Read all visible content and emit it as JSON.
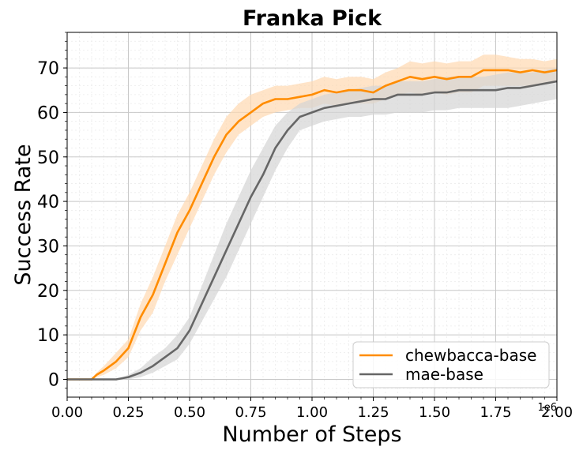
{
  "chart_data": {
    "type": "line",
    "title": "Franka Pick",
    "xlabel": "Number of Steps",
    "ylabel": "Success Rate",
    "x_offset_label": "1e6",
    "xlim": [
      0,
      2.0
    ],
    "ylim": [
      -4,
      78
    ],
    "xticks": [
      "0.00",
      "0.25",
      "0.50",
      "0.75",
      "1.00",
      "1.25",
      "1.50",
      "1.75",
      "2.00"
    ],
    "yticks": [
      "0",
      "10",
      "20",
      "30",
      "40",
      "50",
      "60",
      "70"
    ],
    "grid": true,
    "legend_position": "lower right",
    "x": [
      0.0,
      0.05,
      0.1,
      0.12,
      0.15,
      0.2,
      0.25,
      0.3,
      0.35,
      0.4,
      0.45,
      0.5,
      0.55,
      0.6,
      0.65,
      0.7,
      0.75,
      0.8,
      0.85,
      0.9,
      0.95,
      1.0,
      1.05,
      1.1,
      1.15,
      1.2,
      1.25,
      1.3,
      1.35,
      1.4,
      1.45,
      1.5,
      1.55,
      1.6,
      1.65,
      1.7,
      1.75,
      1.8,
      1.85,
      1.9,
      1.95,
      2.0
    ],
    "series": [
      {
        "name": "chewbacca-base",
        "color": "#ff8c00",
        "band_color": "#ffd9b0",
        "values": [
          0,
          0,
          0,
          1,
          2,
          4,
          7,
          14,
          19,
          26,
          33,
          38,
          44,
          50,
          55,
          58,
          60,
          62,
          63,
          63,
          63.5,
          64,
          65,
          64.5,
          65,
          65,
          64.5,
          66,
          67,
          68,
          67.5,
          68,
          67.5,
          68,
          68,
          69.5,
          69.5,
          69.5,
          69,
          69.5,
          69,
          69.5
        ],
        "lower": [
          0,
          0,
          0,
          0.5,
          1,
          2.5,
          5,
          11,
          15,
          22,
          28,
          34,
          40,
          46,
          51,
          55,
          57,
          59,
          60,
          60.5,
          61,
          61,
          62,
          61.5,
          62,
          62,
          62,
          63,
          64,
          64.5,
          64,
          64.5,
          64,
          64.5,
          64.5,
          66,
          66,
          66,
          66,
          66,
          66.5,
          67
        ],
        "upper": [
          0,
          0,
          0,
          1.5,
          3,
          6,
          9,
          17,
          23,
          30,
          37,
          42,
          48,
          54,
          59,
          62,
          64,
          65,
          66,
          66,
          66.5,
          67,
          68,
          67.5,
          68,
          68,
          67.5,
          69,
          70,
          71.5,
          71,
          71.5,
          71,
          71.5,
          71.5,
          73,
          73,
          72.5,
          72,
          72,
          71.5,
          72
        ]
      },
      {
        "name": "mae-base",
        "color": "#666666",
        "band_color": "#d4d4d4",
        "values": [
          0,
          0,
          0,
          0,
          0,
          0,
          0.5,
          1.5,
          3,
          5,
          7,
          11,
          17,
          23,
          29,
          35,
          41,
          46,
          52,
          56,
          59,
          60,
          61,
          61.5,
          62,
          62.5,
          63,
          63,
          64,
          64,
          64,
          64.5,
          64.5,
          65,
          65,
          65,
          65,
          65.5,
          65.5,
          66,
          66.5,
          67
        ],
        "lower": [
          0,
          0,
          0,
          0,
          0,
          0,
          0,
          0.5,
          1.5,
          3,
          4.5,
          8,
          13,
          18,
          23,
          29,
          35,
          41,
          47,
          52,
          56,
          57,
          58,
          58.5,
          59,
          59,
          59.5,
          59.5,
          60,
          60,
          60,
          60.5,
          60.5,
          61,
          61,
          61,
          61,
          61,
          61.5,
          62,
          62.5,
          63
        ],
        "upper": [
          0,
          0,
          0,
          0,
          0,
          0,
          1,
          2.5,
          5,
          7,
          10,
          14,
          21,
          28,
          35,
          41,
          47,
          52,
          57,
          60,
          62,
          63,
          64,
          64.5,
          65,
          65.5,
          66,
          66,
          67,
          67,
          67,
          67.5,
          68,
          68,
          68,
          68,
          68.5,
          69,
          69,
          69,
          69.5,
          70
        ]
      }
    ]
  }
}
